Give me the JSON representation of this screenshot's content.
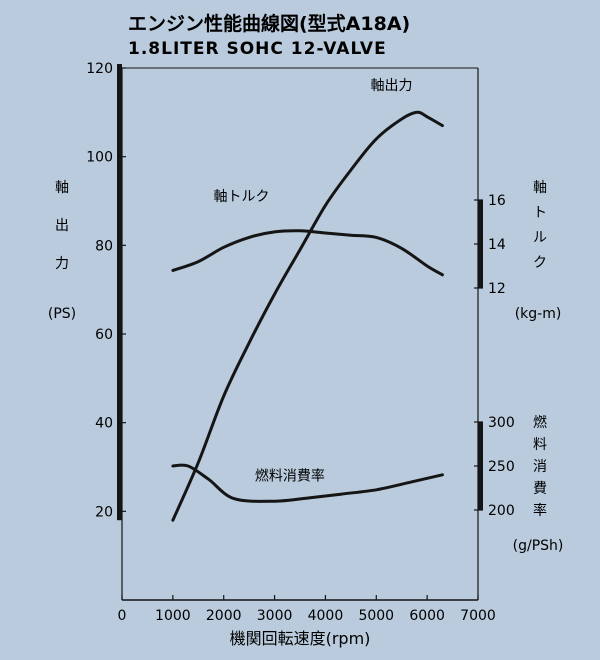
{
  "chart_data": {
    "type": "line",
    "title": "エンジン性能曲線図(型式A18A)",
    "subtitle": "1.8LITER SOHC 12-VALVE",
    "xlabel": "機関回転速度(rpm)",
    "xlim": [
      0,
      7000
    ],
    "x_ticks": [
      "0",
      "1000",
      "2000",
      "3000",
      "4000",
      "5000",
      "6000",
      "7000"
    ],
    "grid": false,
    "axes": {
      "power": {
        "label_chars": [
          "軸",
          "出",
          "力"
        ],
        "unit": "(PS)",
        "range": [
          0,
          120
        ],
        "ticks": [
          "20",
          "40",
          "60",
          "80",
          "100",
          "120"
        ]
      },
      "torque": {
        "label_chars": [
          "軸",
          "ト",
          "ル",
          "ク"
        ],
        "unit": "(kg-m)",
        "range": [
          12,
          16
        ],
        "ticks": [
          "12",
          "14",
          "16"
        ]
      },
      "fuel": {
        "label_chars": [
          "燃",
          "料",
          "消",
          "費",
          "率"
        ],
        "unit": "(g/PSh)",
        "range": [
          200,
          300
        ],
        "ticks": [
          "200",
          "250",
          "300"
        ]
      }
    },
    "series": [
      {
        "name": "軸出力",
        "axis": "power",
        "x": [
          1000,
          1500,
          2000,
          2500,
          3000,
          3500,
          4000,
          4500,
          5000,
          5500,
          5800,
          6000,
          6300
        ],
        "values": [
          18,
          31,
          46,
          58,
          69,
          79,
          89,
          97,
          104,
          108.5,
          110,
          109,
          107
        ]
      },
      {
        "name": "軸トルク",
        "axis": "torque",
        "x": [
          1000,
          1500,
          2000,
          2500,
          3000,
          3500,
          4000,
          4500,
          5000,
          5500,
          6000,
          6300
        ],
        "values": [
          12.8,
          13.2,
          13.85,
          14.3,
          14.55,
          14.6,
          14.5,
          14.4,
          14.3,
          13.8,
          13.0,
          12.6
        ]
      },
      {
        "name": "燃料消費率",
        "axis": "fuel",
        "x": [
          1000,
          1300,
          1700,
          2200,
          3000,
          3700,
          4300,
          5000,
          5700,
          6300
        ],
        "values": [
          250,
          250,
          235,
          213,
          210,
          214,
          218,
          223,
          232,
          240
        ]
      }
    ]
  }
}
